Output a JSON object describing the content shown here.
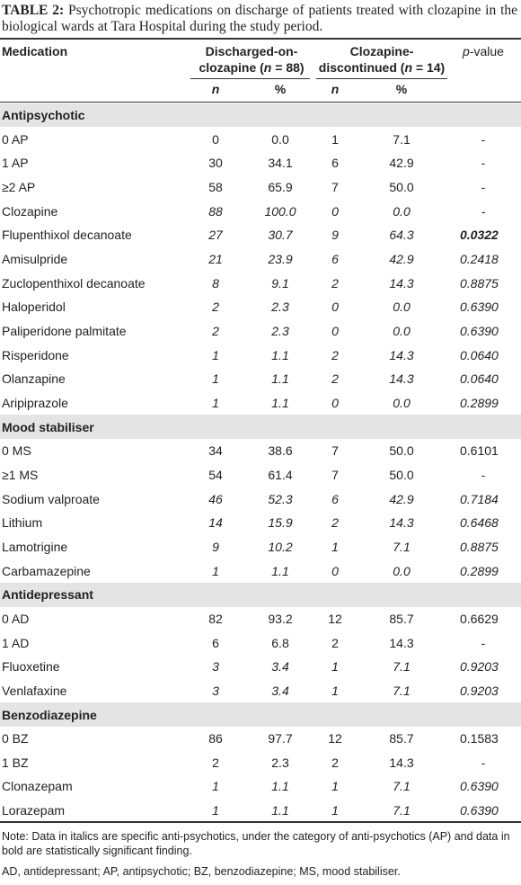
{
  "title": {
    "label": "TABLE 2:",
    "text": "Psychotropic medications on discharge of patients treated with clozapine in the biological wards at Tara Hospital during the study period."
  },
  "header": {
    "medication": "Medication",
    "group1": {
      "line1": "Discharged-on-",
      "line2": [
        "clozapine (",
        "n",
        " = 88)"
      ]
    },
    "group2": {
      "line1": "Clozapine-",
      "line2": [
        "discontinued (",
        "n",
        " = 14)"
      ]
    },
    "p_value": [
      "p",
      "-value"
    ],
    "sub": [
      "n",
      "%",
      "n",
      "%"
    ]
  },
  "sections": [
    {
      "name": "Antipsychotic",
      "rows": [
        {
          "label": "0 AP",
          "cells": [
            "0",
            "0.0",
            "1",
            "7.1",
            "-"
          ]
        },
        {
          "label": "1 AP",
          "cells": [
            "30",
            "34.1",
            "6",
            "42.9",
            "-"
          ]
        },
        {
          "label": "≥2 AP",
          "cells": [
            "58",
            "65.9",
            "7",
            "50.0",
            "-"
          ]
        },
        {
          "label": "Clozapine",
          "cells": [
            "88",
            "100.0",
            "0",
            "0.0",
            "-"
          ],
          "italic": true
        },
        {
          "label": "Flupenthixol decanoate",
          "cells": [
            "27",
            "30.7",
            "9",
            "64.3",
            "0.0322"
          ],
          "italic": true,
          "p_bold": true
        },
        {
          "label": "Amisulpride",
          "cells": [
            "21",
            "23.9",
            "6",
            "42.9",
            "0.2418"
          ],
          "italic": true
        },
        {
          "label": "Zuclopenthixol decanoate",
          "cells": [
            "8",
            "9.1",
            "2",
            "14.3",
            "0.8875"
          ],
          "italic": true
        },
        {
          "label": "Haloperidol",
          "cells": [
            "2",
            "2.3",
            "0",
            "0.0",
            "0.6390"
          ],
          "italic": true
        },
        {
          "label": "Paliperidone palmitate",
          "cells": [
            "2",
            "2.3",
            "0",
            "0.0",
            "0.6390"
          ],
          "italic": true
        },
        {
          "label": "Risperidone",
          "cells": [
            "1",
            "1.1",
            "2",
            "14.3",
            "0.0640"
          ],
          "italic": true
        },
        {
          "label": "Olanzapine",
          "cells": [
            "1",
            "1.1",
            "2",
            "14.3",
            "0.0640"
          ],
          "italic": true
        },
        {
          "label": "Aripiprazole",
          "cells": [
            "1",
            "1.1",
            "0",
            "0.0",
            "0.2899"
          ],
          "italic": true
        }
      ]
    },
    {
      "name": "Mood stabiliser",
      "rows": [
        {
          "label": "0 MS",
          "cells": [
            "34",
            "38.6",
            "7",
            "50.0",
            "0.6101"
          ]
        },
        {
          "label": "≥1 MS",
          "cells": [
            "54",
            "61.4",
            "7",
            "50.0",
            "-"
          ]
        },
        {
          "label": "Sodium valproate",
          "cells": [
            "46",
            "52.3",
            "6",
            "42.9",
            "0.7184"
          ],
          "italic": true
        },
        {
          "label": "Lithium",
          "cells": [
            "14",
            "15.9",
            "2",
            "14.3",
            "0.6468"
          ],
          "italic": true
        },
        {
          "label": "Lamotrigine",
          "cells": [
            "9",
            "10.2",
            "1",
            "7.1",
            "0.8875"
          ],
          "italic": true
        },
        {
          "label": "Carbamazepine",
          "cells": [
            "1",
            "1.1",
            "0",
            "0.0",
            "0.2899"
          ],
          "italic": true
        }
      ]
    },
    {
      "name": "Antidepressant",
      "rows": [
        {
          "label": "0 AD",
          "cells": [
            "82",
            "93.2",
            "12",
            "85.7",
            "0.6629"
          ]
        },
        {
          "label": "1 AD",
          "cells": [
            "6",
            "6.8",
            "2",
            "14.3",
            "-"
          ]
        },
        {
          "label": "Fluoxetine",
          "cells": [
            "3",
            "3.4",
            "1",
            "7.1",
            "0.9203"
          ],
          "italic": true
        },
        {
          "label": "Venlafaxine",
          "cells": [
            "3",
            "3.4",
            "1",
            "7.1",
            "0.9203"
          ],
          "italic": true
        }
      ]
    },
    {
      "name": "Benzodiazepine",
      "rows": [
        {
          "label": "0 BZ",
          "cells": [
            "86",
            "97.7",
            "12",
            "85.7",
            "0.1583"
          ]
        },
        {
          "label": "1 BZ",
          "cells": [
            "2",
            "2.3",
            "2",
            "14.3",
            "-"
          ]
        },
        {
          "label": "Clonazepam",
          "cells": [
            "1",
            "1.1",
            "1",
            "7.1",
            "0.6390"
          ],
          "italic": true
        },
        {
          "label": "Lorazepam",
          "cells": [
            "1",
            "1.1",
            "1",
            "7.1",
            "0.6390"
          ],
          "italic": true
        }
      ]
    }
  ],
  "notes": [
    "Note: Data in italics are specific anti-psychotics, under the category of anti-psychotics (AP) and data in bold are statistically significant finding.",
    "AD, antidepressant; AP, antipsychotic; BZ, benzodiazepine; MS, mood stabiliser."
  ]
}
